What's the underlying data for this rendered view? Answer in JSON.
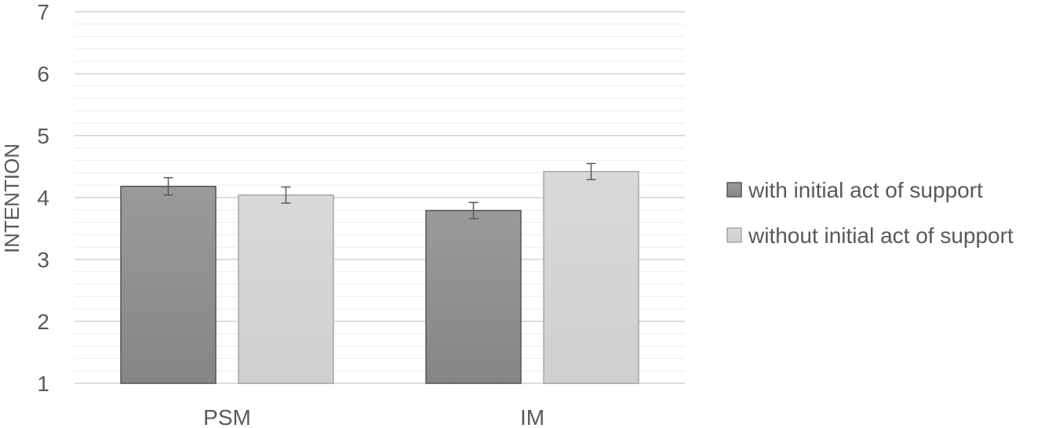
{
  "chart_data": {
    "type": "bar",
    "categories": [
      "PSM",
      "IM"
    ],
    "series": [
      {
        "name": "with initial act of support",
        "values": [
          4.18,
          3.79
        ],
        "errors": [
          0.14,
          0.13
        ],
        "color": "#8f8f8f"
      },
      {
        "name": "without initial act of support",
        "values": [
          4.04,
          4.42
        ],
        "errors": [
          0.13,
          0.13
        ],
        "color": "#d4d4d4"
      }
    ],
    "title": "",
    "xlabel": "",
    "ylabel": "INTENTION",
    "ylim": [
      1,
      7
    ],
    "yticks": [
      1,
      2,
      3,
      4,
      5,
      6,
      7
    ],
    "minor_grid_step": 0.2,
    "grid": true,
    "legend_position": "right",
    "error_bars": true
  }
}
